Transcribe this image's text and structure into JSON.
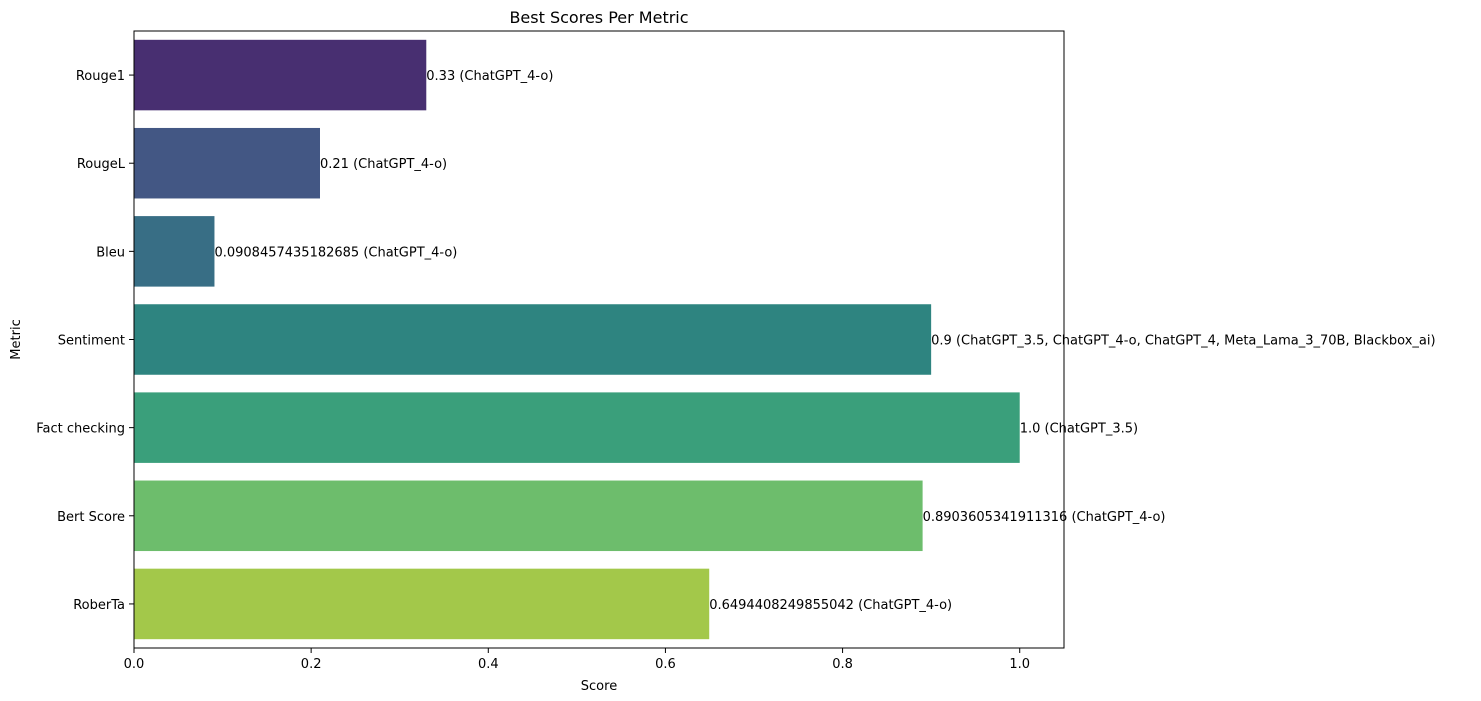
{
  "chart_data": {
    "type": "bar",
    "orientation": "horizontal",
    "title": "Best Scores Per Metric",
    "xlabel": "Score",
    "ylabel": "Metric",
    "xlim": [
      0,
      1.05
    ],
    "xticks": [
      0.0,
      0.2,
      0.4,
      0.6,
      0.8,
      1.0
    ],
    "xtick_labels": [
      "0.0",
      "0.2",
      "0.4",
      "0.6",
      "0.8",
      "1.0"
    ],
    "grid": false,
    "categories": [
      "Rouge1",
      "RougeL",
      "Bleu",
      "Sentiment",
      "Fact checking",
      "Bert Score",
      "RoberTa"
    ],
    "values": [
      0.33,
      0.21,
      0.0908457435182685,
      0.9,
      1.0,
      0.8903605341911316,
      0.6494408249855042
    ],
    "data_labels": [
      "0.33 (ChatGPT_4-o)",
      "0.21 (ChatGPT_4-o)",
      "0.0908457435182685 (ChatGPT_4-o)",
      "0.9 (ChatGPT_3.5, ChatGPT_4-o, ChatGPT_4, Meta_Lama_3_70B, Blackbox_ai)",
      "1.0 (ChatGPT_3.5)",
      "0.8903605341911316 (ChatGPT_4-o)",
      "0.6494408249855042 (ChatGPT_4-o)"
    ],
    "colors": [
      "#482f71",
      "#435784",
      "#386e85",
      "#2e8480",
      "#3a9f7b",
      "#6dbd6c",
      "#a3c84a"
    ]
  }
}
